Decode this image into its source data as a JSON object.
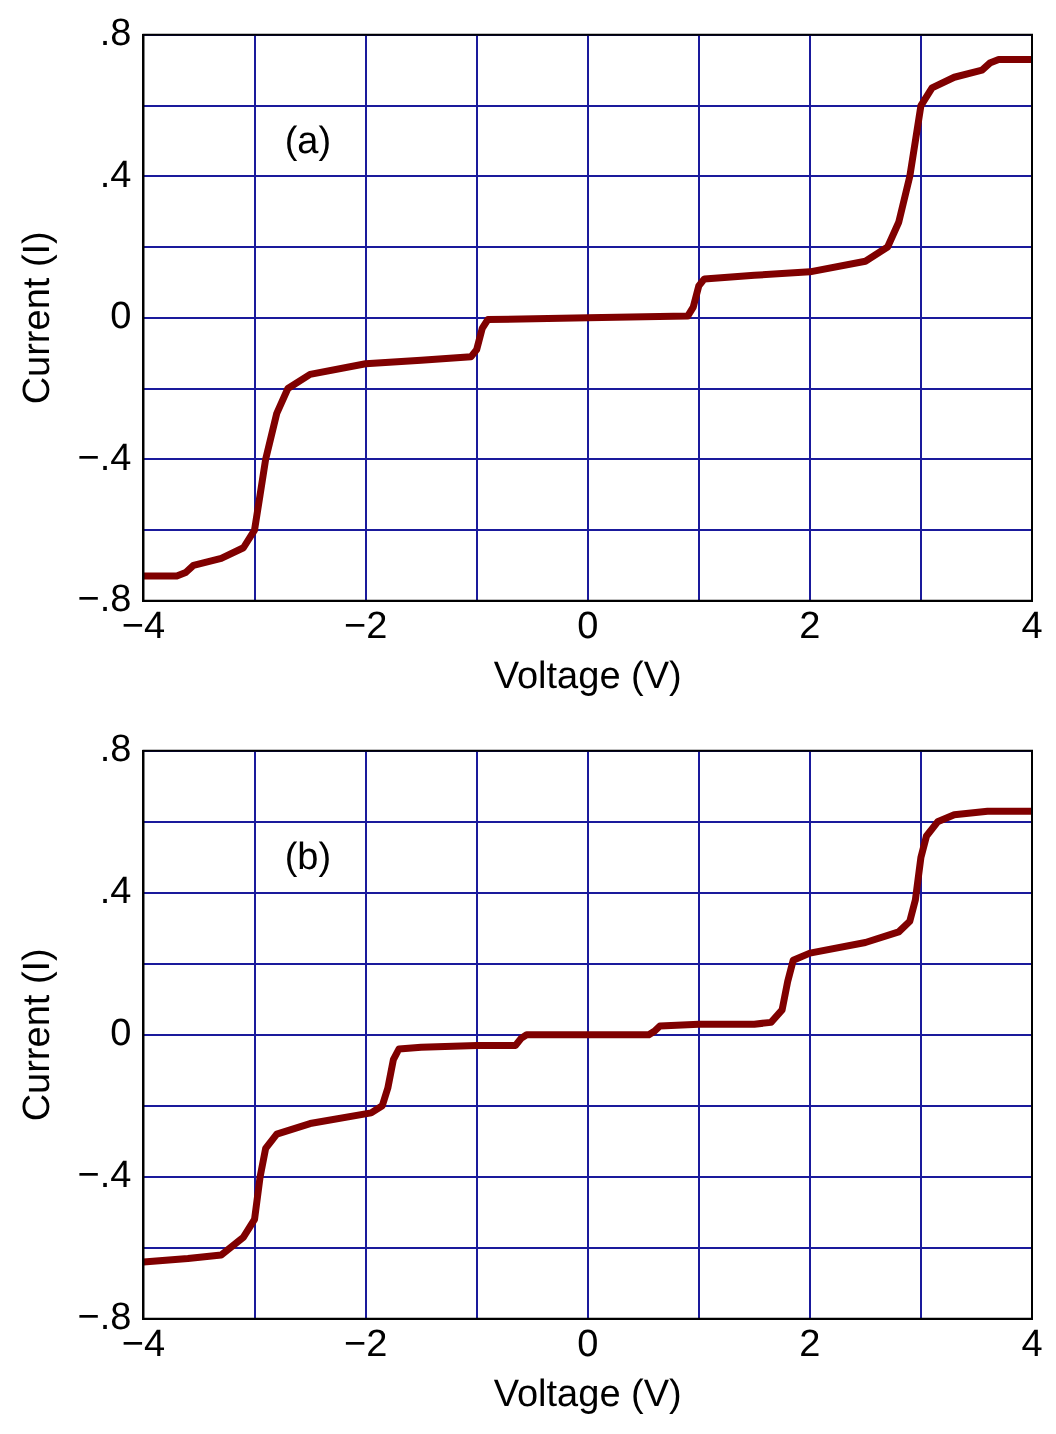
{
  "chart_data": [
    {
      "type": "line",
      "xlabel": "Voltage (V)",
      "ylabel": "Current (I)",
      "annotations": [
        "(a)"
      ],
      "grid": true,
      "legend": false,
      "marker": "none",
      "line_style": "solid",
      "xlim": [
        -4,
        4
      ],
      "xticks": [
        {
          "value": -4,
          "label": "−4"
        },
        {
          "value": -3,
          "label": null
        },
        {
          "value": -2,
          "label": "−2"
        },
        {
          "value": -1,
          "label": null
        },
        0,
        {
          "value": 1,
          "label": null
        },
        2,
        {
          "value": 3,
          "label": null
        },
        4
      ],
      "ylim": [
        -0.8,
        0.8
      ],
      "yticks": [
        {
          "value": -0.8,
          "label": "−.8"
        },
        {
          "value": -0.6,
          "label": null
        },
        {
          "value": -0.4,
          "label": "−.4"
        },
        {
          "value": -0.2,
          "label": null
        },
        0,
        {
          "value": 0.2,
          "label": null
        },
        {
          "value": 0.4,
          "label": ".4"
        },
        {
          "value": 0.6,
          "label": null
        },
        {
          "value": 0.8,
          "label": ".8"
        }
      ],
      "series": [
        {
          "color": "#800000",
          "x": [
            -4,
            -3.7,
            -3.62,
            -3.55,
            -3.3,
            -3.1,
            -3.0,
            -2.95,
            -2.9,
            -2.8,
            -2.7,
            -2.5,
            -2.0,
            -1.5,
            -1.05,
            -1.0,
            -0.95,
            -0.9,
            0,
            0.9,
            0.95,
            1.0,
            1.05,
            1.5,
            2.0,
            2.5,
            2.7,
            2.8,
            2.9,
            2.95,
            3.0,
            3.1,
            3.3,
            3.55,
            3.62,
            3.7,
            4
          ],
          "values": [
            -0.73,
            -0.73,
            -0.72,
            -0.7,
            -0.68,
            -0.65,
            -0.6,
            -0.5,
            -0.4,
            -0.27,
            -0.2,
            -0.16,
            -0.13,
            -0.12,
            -0.11,
            -0.09,
            -0.03,
            -0.005,
            0,
            0.005,
            0.03,
            0.09,
            0.11,
            0.12,
            0.13,
            0.16,
            0.2,
            0.27,
            0.4,
            0.5,
            0.6,
            0.65,
            0.68,
            0.7,
            0.72,
            0.73,
            0.73
          ]
        }
      ]
    },
    {
      "type": "line",
      "xlabel": "Voltage (V)",
      "ylabel": "Current (I)",
      "annotations": [
        "(b)"
      ],
      "grid": true,
      "legend": false,
      "marker": "none",
      "line_style": "solid",
      "xlim": [
        -4,
        4
      ],
      "xticks": [
        {
          "value": -4,
          "label": "−4"
        },
        {
          "value": -3,
          "label": null
        },
        {
          "value": -2,
          "label": "−2"
        },
        {
          "value": -1,
          "label": null
        },
        0,
        {
          "value": 1,
          "label": null
        },
        2,
        {
          "value": 3,
          "label": null
        },
        4
      ],
      "ylim": [
        -0.8,
        0.8
      ],
      "yticks": [
        {
          "value": -0.8,
          "label": "−.8"
        },
        {
          "value": -0.6,
          "label": null
        },
        {
          "value": -0.4,
          "label": "−.4"
        },
        {
          "value": -0.2,
          "label": null
        },
        0,
        {
          "value": 0.2,
          "label": null
        },
        {
          "value": 0.4,
          "label": ".4"
        },
        {
          "value": 0.6,
          "label": null
        },
        {
          "value": 0.8,
          "label": ".8"
        }
      ],
      "series": [
        {
          "color": "#800000",
          "x": [
            -4,
            -3.6,
            -3.3,
            -3.1,
            -3.0,
            -2.95,
            -2.9,
            -2.8,
            -2.5,
            -1.95,
            -1.85,
            -1.8,
            -1.75,
            -1.7,
            -1.5,
            -1.0,
            -0.65,
            -0.6,
            -0.55,
            0,
            0.55,
            0.6,
            0.65,
            1.0,
            1.5,
            1.65,
            1.75,
            1.8,
            1.85,
            2.0,
            2.5,
            2.8,
            2.9,
            2.95,
            3.0,
            3.05,
            3.15,
            3.3,
            3.6,
            4
          ],
          "values": [
            -0.64,
            -0.63,
            -0.62,
            -0.57,
            -0.52,
            -0.4,
            -0.32,
            -0.28,
            -0.25,
            -0.22,
            -0.2,
            -0.15,
            -0.07,
            -0.04,
            -0.035,
            -0.03,
            -0.03,
            -0.01,
            0,
            0,
            0,
            0.01,
            0.025,
            0.03,
            0.03,
            0.035,
            0.07,
            0.15,
            0.21,
            0.23,
            0.26,
            0.29,
            0.32,
            0.38,
            0.5,
            0.56,
            0.6,
            0.62,
            0.63,
            0.63
          ]
        }
      ]
    }
  ]
}
